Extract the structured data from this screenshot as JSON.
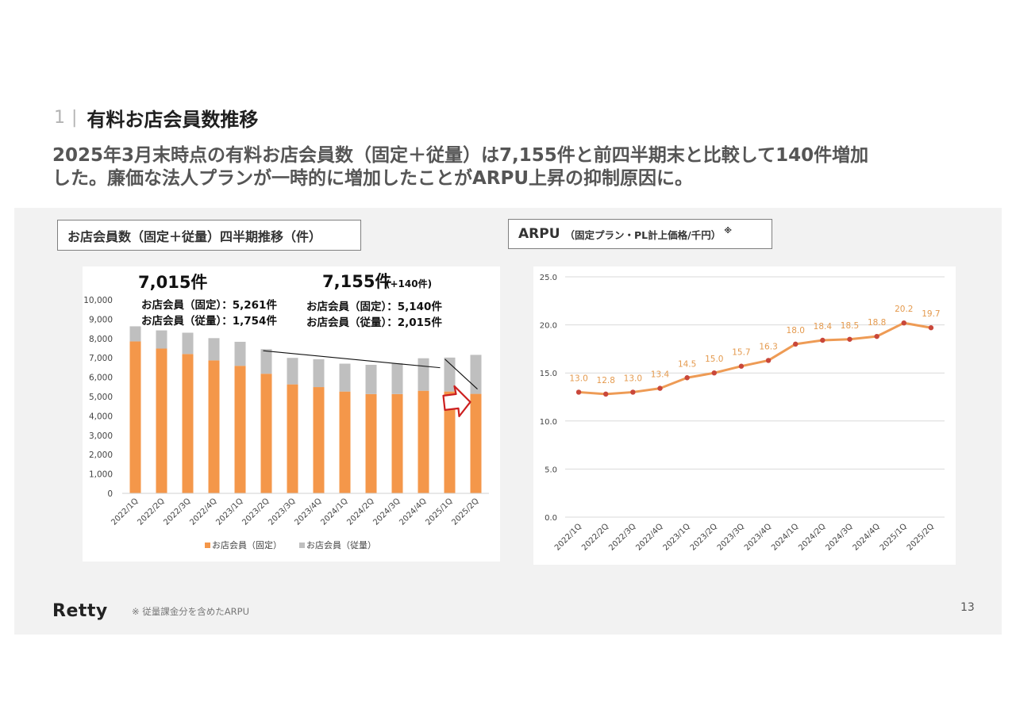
{
  "section": {
    "number": "1",
    "separator": "|",
    "title": "有料お店会員数推移"
  },
  "headline": {
    "line1": "2025年3月末時点の有料お店会員数（固定＋従量）は7,155件と前四半期末と比較して140件増加",
    "line2": "した。廉価な法人プランが一時的に増加したことがARPU上昇の抑制原因に。"
  },
  "left_label": "お店会員数（固定＋従量）四半期推移（件）",
  "right_label": {
    "main": "ARPU",
    "sub": "（固定プラン・PL計上価格/千円）",
    "mark": "※"
  },
  "callouts": {
    "left_total": "7,015件",
    "left_fixed": "お店会員（固定）：5,261件",
    "left_usage": "お店会員（従量）：1,754件",
    "right_total": "7,155件",
    "right_delta": "(+140件)",
    "right_fixed": "お店会員（固定）：5,140件",
    "right_usage": "お店会員（従量）：2,015件"
  },
  "colors": {
    "fixed": "#f4974a",
    "usage": "#bfbfbf",
    "arpu_line": "#ee9b55",
    "arpu_point": "#c9473a",
    "arpu_label": "#e49a4e",
    "arrow": "#cc1f1f"
  },
  "chart_data": [
    {
      "type": "bar",
      "stacked": true,
      "categories": [
        "2022/1Q",
        "2022/2Q",
        "2022/3Q",
        "2022/4Q",
        "2023/1Q",
        "2023/2Q",
        "2023/3Q",
        "2023/4Q",
        "2024/1Q",
        "2024/2Q",
        "2024/3Q",
        "2024/4Q",
        "2025/1Q",
        "2025/2Q"
      ],
      "series": [
        {
          "name": "お店会員（固定）",
          "values": [
            7850,
            7480,
            7200,
            6870,
            6590,
            6180,
            5630,
            5490,
            5260,
            5130,
            5130,
            5300,
            5261,
            5140
          ]
        },
        {
          "name": "お店会員（従量）",
          "values": [
            780,
            940,
            1100,
            1150,
            1240,
            1270,
            1370,
            1440,
            1440,
            1510,
            1590,
            1680,
            1754,
            2015
          ]
        }
      ],
      "ylim": [
        0,
        10000
      ],
      "yticks": [
        "0",
        "1,000",
        "2,000",
        "3,000",
        "4,000",
        "5,000",
        "6,000",
        "7,000",
        "8,000",
        "9,000",
        "10,000"
      ],
      "legend_position": "bottom"
    },
    {
      "type": "line",
      "categories": [
        "2022/1Q",
        "2022/2Q",
        "2022/3Q",
        "2022/4Q",
        "2023/1Q",
        "2023/2Q",
        "2023/3Q",
        "2023/4Q",
        "2024/1Q",
        "2024/2Q",
        "2024/3Q",
        "2024/4Q",
        "2025/1Q",
        "2025/2Q"
      ],
      "values": [
        13.0,
        12.8,
        13.0,
        13.4,
        14.5,
        15.0,
        15.7,
        16.3,
        18.0,
        18.4,
        18.5,
        18.8,
        20.2,
        19.7
      ],
      "labels": [
        "13.0",
        "12.8",
        "13.0",
        "13.4",
        "14.5",
        "15.0",
        "15.7",
        "16.3",
        "18.0",
        "18.4",
        "18.5",
        "18.8",
        "20.2",
        "19.7"
      ],
      "ylim": [
        0,
        25
      ],
      "yticks": [
        "0.0",
        "5.0",
        "10.0",
        "15.0",
        "20.0",
        "25.0"
      ],
      "grid": true
    }
  ],
  "footer": {
    "logo": "Retty",
    "note": "※ 従量課金分を含めたARPU",
    "page": "13"
  }
}
